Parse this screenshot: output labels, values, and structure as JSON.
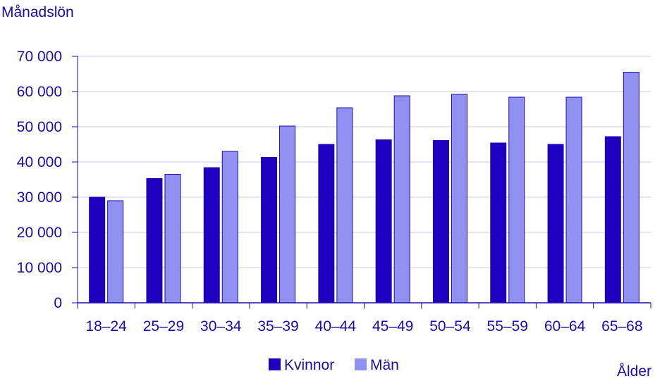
{
  "chart_data": {
    "type": "bar",
    "ylabel": "Månadslön",
    "xlabel": "Ålder",
    "categories": [
      "18–24",
      "25–29",
      "30–34",
      "35–39",
      "40–44",
      "45–49",
      "50–54",
      "55–59",
      "60–64",
      "65–68"
    ],
    "series": [
      {
        "name": "Kvinnor",
        "color": "#1f00c0",
        "values": [
          30000,
          35300,
          38400,
          41300,
          45000,
          46300,
          46100,
          45400,
          45000,
          47200
        ]
      },
      {
        "name": "Män",
        "color": "#9090f0",
        "values": [
          29000,
          36500,
          43000,
          50200,
          55400,
          58800,
          59200,
          58400,
          58400,
          65500
        ]
      }
    ],
    "ylim": [
      0,
      70000
    ],
    "yticks": [
      0,
      10000,
      20000,
      30000,
      40000,
      50000,
      60000,
      70000
    ],
    "ytick_labels": [
      "0",
      "10 000",
      "20 000",
      "30 000",
      "40 000",
      "50 000",
      "60 000",
      "70 000"
    ],
    "grid": true,
    "legend_position": "bottom-center"
  }
}
